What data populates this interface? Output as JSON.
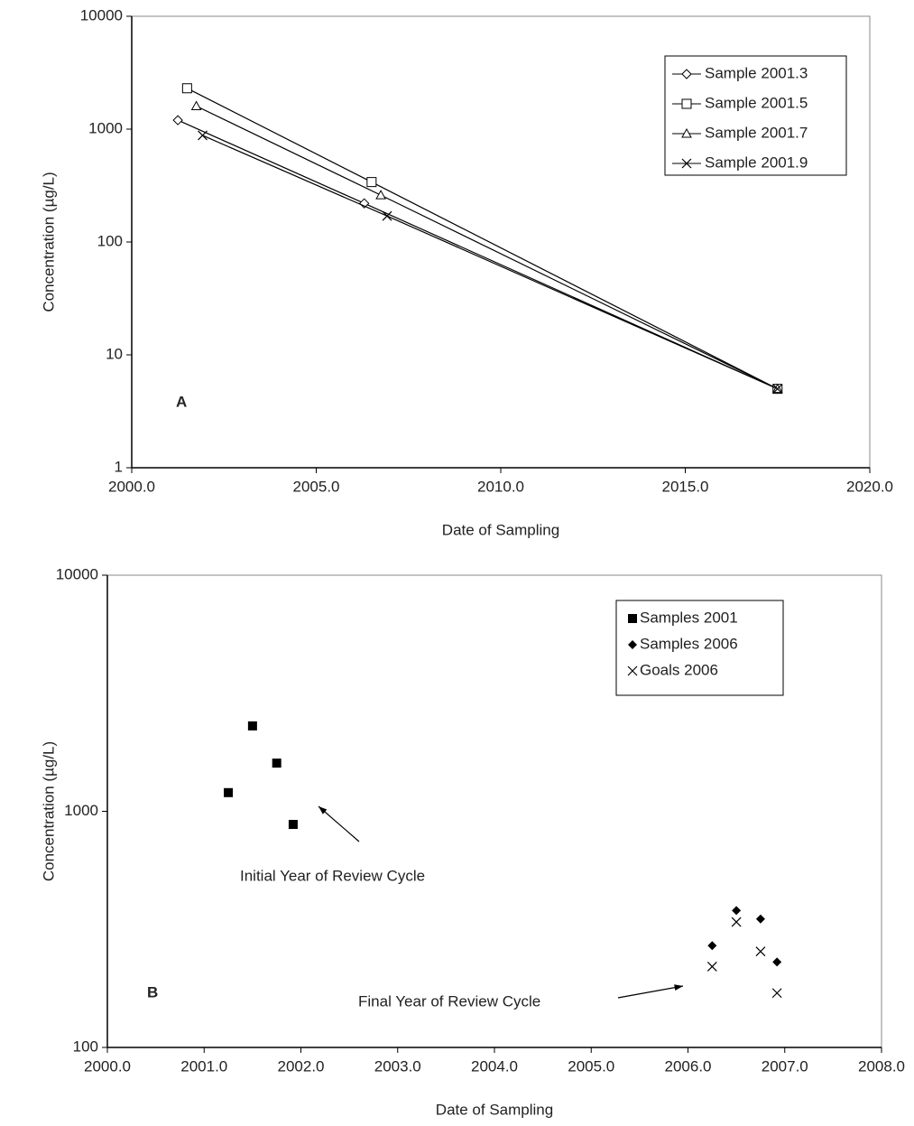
{
  "chart_data": [
    {
      "type": "line",
      "ylabel": "Concentration (µg/L)",
      "xlabel": "Date of Sampling",
      "log_y": true,
      "xlim": [
        2000,
        2020
      ],
      "xticks": [
        {
          "value": 2000,
          "label": "2000.0"
        },
        {
          "value": 2005,
          "label": "2005.0"
        },
        {
          "value": 2010,
          "label": "2010.0"
        },
        {
          "value": 2015,
          "label": "2015.0"
        },
        {
          "value": 2020,
          "label": "2020.0"
        }
      ],
      "ylim": [
        1,
        10000
      ],
      "yticks": [
        1,
        10,
        100,
        1000,
        10000
      ],
      "legend": "upper right",
      "annotations": [
        "A"
      ],
      "series": [
        {
          "name": "Sample 2001.3",
          "color": "#000000",
          "marker": "diamond-open",
          "x": [
            2001.25,
            2006.3,
            2017.5
          ],
          "values": [
            1200,
            220,
            5
          ]
        },
        {
          "name": "Sample 2001.5",
          "color": "#000000",
          "marker": "square-open",
          "x": [
            2001.5,
            2006.5,
            2017.5
          ],
          "values": [
            2300,
            340,
            5
          ]
        },
        {
          "name": "Sample 2001.7",
          "color": "#000000",
          "marker": "triangle-open",
          "x": [
            2001.75,
            2006.75,
            2017.5
          ],
          "values": [
            1600,
            260,
            5
          ]
        },
        {
          "name": "Sample 2001.9",
          "color": "#000000",
          "marker": "x",
          "x": [
            2001.92,
            2006.92,
            2017.5
          ],
          "values": [
            880,
            170,
            5
          ]
        }
      ]
    },
    {
      "type": "scatter",
      "ylabel": "Concentration (µg/L)",
      "xlabel": "Date of Sampling",
      "log_y": true,
      "xlim": [
        2000,
        2008
      ],
      "xticks": [
        {
          "value": 2000,
          "label": "2000.0"
        },
        {
          "value": 2001,
          "label": "2001.0"
        },
        {
          "value": 2002,
          "label": "2002.0"
        },
        {
          "value": 2003,
          "label": "2003.0"
        },
        {
          "value": 2004,
          "label": "2004.0"
        },
        {
          "value": 2005,
          "label": "2005.0"
        },
        {
          "value": 2006,
          "label": "2006.0"
        },
        {
          "value": 2007,
          "label": "2007.0"
        },
        {
          "value": 2008,
          "label": "2008.0"
        }
      ],
      "ylim": [
        100,
        10000
      ],
      "yticks": [
        100,
        1000,
        10000
      ],
      "legend": "upper right",
      "annotations": [
        "B",
        "Initial Year of Review Cycle",
        "Final Year of Review Cycle"
      ],
      "series": [
        {
          "name": "Samples 2001",
          "color": "#000000",
          "marker": "square",
          "x": [
            2001.25,
            2001.5,
            2001.75,
            2001.92
          ],
          "values": [
            1200,
            2300,
            1600,
            880
          ]
        },
        {
          "name": "Samples 2006",
          "color": "#000000",
          "marker": "diamond",
          "x": [
            2006.25,
            2006.5,
            2006.75,
            2006.92
          ],
          "values": [
            270,
            380,
            350,
            230
          ]
        },
        {
          "name": "Goals 2006",
          "color": "#000000",
          "marker": "x",
          "x": [
            2006.25,
            2006.5,
            2006.75,
            2006.92
          ],
          "values": [
            220,
            340,
            255,
            170
          ]
        }
      ]
    }
  ]
}
